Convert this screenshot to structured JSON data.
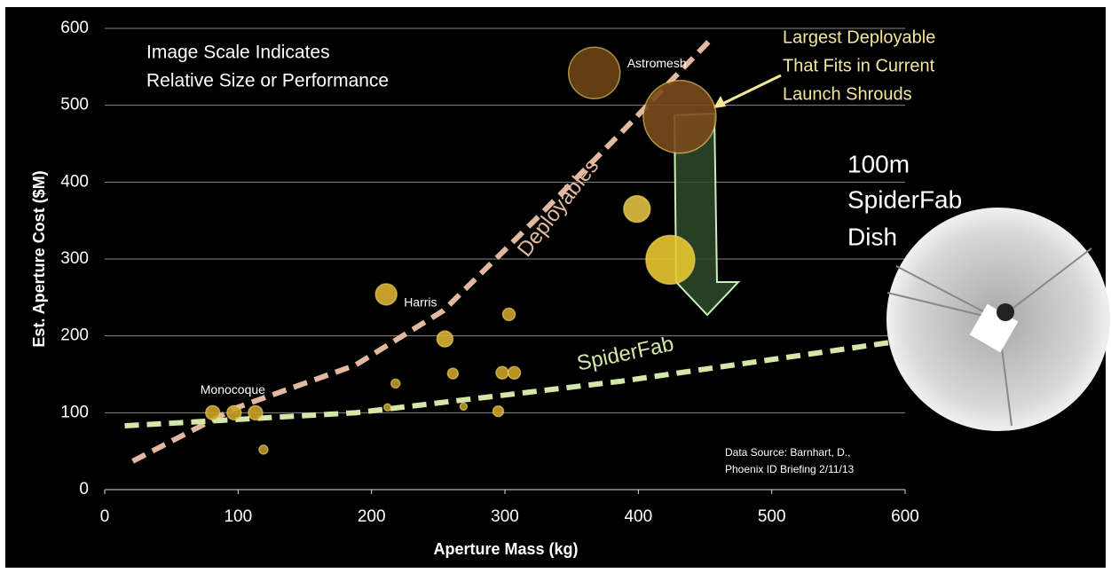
{
  "chart_data": {
    "type": "scatter",
    "x_label": "Aperture Mass (kg)",
    "y_label": "Est. Aperture Cost ($M)",
    "xlim": [
      0,
      600
    ],
    "xticks": [
      0,
      100,
      200,
      300,
      400,
      500,
      600
    ],
    "ylim": [
      0,
      600
    ],
    "yticks": [
      0,
      100,
      200,
      300,
      400,
      500,
      600
    ],
    "grid": true,
    "x": [
      81,
      97,
      113,
      119,
      212,
      218,
      211,
      255,
      261,
      269,
      303,
      298,
      307,
      295,
      367,
      431,
      399,
      424
    ],
    "values": [
      100,
      100,
      100,
      52,
      107,
      138,
      254,
      196,
      151,
      108,
      228,
      152,
      152,
      102,
      542,
      485,
      365,
      299
    ],
    "sizes": [
      16,
      16,
      16,
      10,
      8,
      10,
      24,
      18,
      12,
      8,
      14,
      14,
      14,
      12,
      58,
      82,
      30,
      55
    ],
    "colors": [
      "#c9a227",
      "#c9a227",
      "#c9a227",
      "#b8962a",
      "#b8962a",
      "#b8962a",
      "#d8b030",
      "#d8b030",
      "#c9a227",
      "#b8962a",
      "#c9a227",
      "#c9a227",
      "#c9a227",
      "#c9a227",
      "#6e4516",
      "#7a4a1c",
      "#e0c040",
      "#e8c830"
    ],
    "point_labels": [
      "Monocoque",
      null,
      null,
      null,
      null,
      null,
      "Harris",
      null,
      null,
      null,
      null,
      null,
      null,
      null,
      "Astromesh",
      null,
      null,
      null
    ],
    "trend_lines": [
      {
        "name": "Deployables",
        "color": "#e2b9a0",
        "x": [
          21,
          98,
          188,
          254,
          321,
          387,
          454
        ],
        "values": [
          37,
          106,
          162,
          233,
          348,
          464,
          585
        ]
      },
      {
        "name": "SpiderFab",
        "color": "#d4e6a8",
        "x": [
          15,
          188,
          387,
          643
        ],
        "values": [
          83,
          100,
          141,
          205
        ]
      }
    ],
    "annotations": {
      "scale_note": [
        "Image Scale Indicates",
        "Relative Size or Performance"
      ],
      "largest": [
        "Largest Deployable",
        "That Fits in Current",
        "Launch Shrouds"
      ],
      "dish": [
        "100m",
        "SpiderFab",
        "Dish"
      ],
      "source": [
        "Data Source:  Barnhart, D.,",
        "Phoenix ID Briefing 2/11/13"
      ]
    }
  }
}
